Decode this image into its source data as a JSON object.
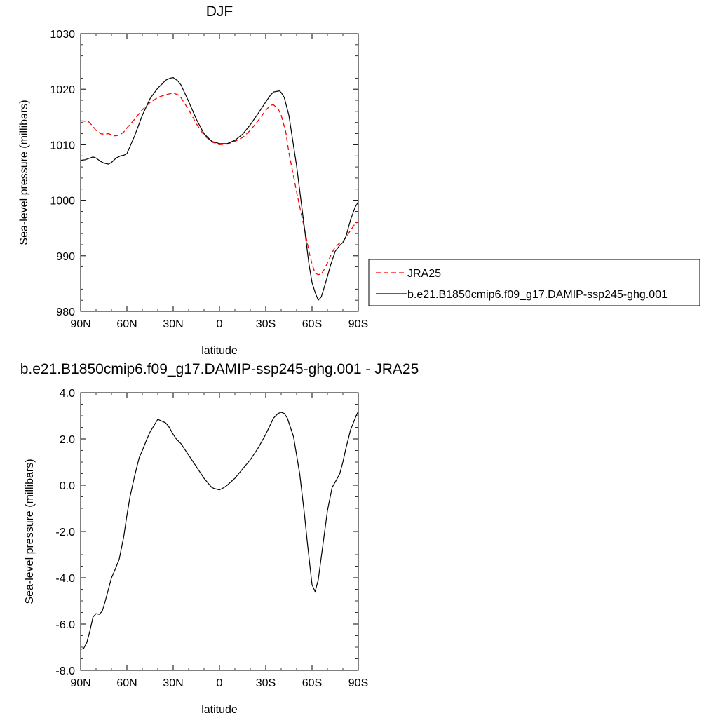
{
  "colors": {
    "model": "#000000",
    "obs": "#ff0000",
    "frame": "#000000"
  },
  "chart_data": [
    {
      "type": "line",
      "title": "DJF",
      "xlabel": "latitude",
      "ylabel": "Sea-level pressure (millibars)",
      "xlim": [
        90,
        -90
      ],
      "ylim": [
        980,
        1030
      ],
      "x_ticks": [
        90,
        60,
        30,
        0,
        -30,
        -60,
        -90
      ],
      "x_tick_labels": [
        "90N",
        "60N",
        "30N",
        "0",
        "30S",
        "60S",
        "90S"
      ],
      "y_ticks": [
        980,
        990,
        1000,
        1010,
        1020,
        1030
      ],
      "y_tick_labels": [
        "980",
        "990",
        "1000",
        "1010",
        "1020",
        "1030"
      ],
      "grid": false,
      "legend": {
        "placement": "right",
        "entries": [
          {
            "label": "JRA25",
            "series": 0
          },
          {
            "label": "b.e21.B1850cmip6.f09_g17.DAMIP-ssp245-ghg.001",
            "series": 1
          }
        ]
      },
      "series": [
        {
          "name": "JRA25",
          "style": "dashed",
          "color": "#ff0000",
          "x": [
            90,
            85,
            82,
            80,
            77,
            75,
            72,
            70,
            68,
            65,
            62,
            60,
            55,
            50,
            45,
            40,
            35,
            30,
            27,
            25,
            20,
            15,
            10,
            5,
            0,
            -5,
            -10,
            -15,
            -20,
            -25,
            -30,
            -33,
            -35,
            -38,
            -40,
            -43,
            -45,
            -50,
            -55,
            -58,
            -60,
            -62,
            -64,
            -66,
            -68,
            -70,
            -72,
            -75,
            -78,
            -80,
            -82,
            -85,
            -88,
            -90
          ],
          "y": [
            1014.3,
            1014.2,
            1013.3,
            1012.6,
            1012.0,
            1011.9,
            1012.0,
            1011.8,
            1011.6,
            1011.7,
            1012.3,
            1013.0,
            1014.6,
            1016.3,
            1017.6,
            1018.5,
            1019.0,
            1019.3,
            1019.0,
            1018.5,
            1016.3,
            1013.8,
            1011.7,
            1010.5,
            1010.0,
            1010.1,
            1010.6,
            1011.3,
            1012.6,
            1014.3,
            1016.2,
            1017.1,
            1017.2,
            1016.5,
            1015.3,
            1012.3,
            1008.6,
            1001.5,
            995.0,
            990.8,
            988.5,
            986.9,
            986.6,
            986.7,
            987.6,
            988.7,
            990.0,
            991.6,
            992.3,
            992.6,
            993.3,
            994.6,
            995.8,
            996.1
          ]
        },
        {
          "name": "b.e21.B1850cmip6.f09_g17.DAMIP-ssp245-ghg.001",
          "style": "solid",
          "color": "#000000",
          "x": [
            90,
            87,
            84,
            82,
            80,
            77,
            75,
            72,
            70,
            67,
            64,
            62,
            60,
            55,
            50,
            45,
            40,
            37,
            35,
            32,
            30,
            27,
            25,
            20,
            15,
            10,
            5,
            0,
            -5,
            -10,
            -15,
            -20,
            -25,
            -30,
            -33,
            -35,
            -37,
            -39,
            -40,
            -42,
            -45,
            -50,
            -55,
            -58,
            -60,
            -62,
            -64,
            -66,
            -68,
            -70,
            -72,
            -75,
            -78,
            -80,
            -82,
            -85,
            -88,
            -90
          ],
          "y": [
            1007.2,
            1007.3,
            1007.6,
            1007.8,
            1007.6,
            1007.0,
            1006.7,
            1006.5,
            1006.8,
            1007.6,
            1008.0,
            1008.1,
            1008.4,
            1011.6,
            1015.3,
            1018.3,
            1020.2,
            1021.0,
            1021.6,
            1022.0,
            1022.1,
            1021.5,
            1020.8,
            1017.8,
            1014.6,
            1012.0,
            1010.6,
            1010.2,
            1010.2,
            1010.8,
            1011.9,
            1013.6,
            1015.6,
            1017.7,
            1018.9,
            1019.5,
            1019.6,
            1019.7,
            1019.4,
            1018.5,
            1015.3,
            1006.2,
            995.2,
            988.5,
            985.2,
            983.4,
            982.0,
            982.6,
            984.4,
            986.3,
            988.3,
            990.8,
            991.9,
            992.4,
            993.5,
            996.5,
            998.8,
            999.7
          ]
        }
      ]
    },
    {
      "type": "line",
      "title": "b.e21.B1850cmip6.f09_g17.DAMIP-ssp245-ghg.001 - JRA25",
      "xlabel": "latitude",
      "ylabel": "Sea-level pressure (millibars)",
      "xlim": [
        90,
        -90
      ],
      "ylim": [
        -8.0,
        4.0
      ],
      "x_ticks": [
        90,
        60,
        30,
        0,
        -30,
        -60,
        -90
      ],
      "x_tick_labels": [
        "90N",
        "60N",
        "30N",
        "0",
        "30S",
        "60S",
        "90S"
      ],
      "y_ticks": [
        -8.0,
        -6.0,
        -4.0,
        -2.0,
        0.0,
        2.0,
        4.0
      ],
      "y_tick_labels": [
        "-8.0",
        "-6.0",
        "-4.0",
        "-2.0",
        "0.0",
        "2.0",
        "4.0"
      ],
      "grid": false,
      "series": [
        {
          "style": "solid",
          "color": "#000000",
          "x": [
            90,
            88,
            86,
            84,
            82,
            80,
            78,
            76,
            74,
            72,
            70,
            68,
            65,
            62,
            60,
            58,
            55,
            52,
            50,
            47,
            45,
            40,
            35,
            33,
            30,
            28,
            25,
            20,
            15,
            10,
            5,
            3,
            0,
            -3,
            -5,
            -10,
            -15,
            -20,
            -25,
            -30,
            -35,
            -38,
            -40,
            -42,
            -44,
            -46,
            -48,
            -50,
            -52,
            -55,
            -57,
            -60,
            -62,
            -64,
            -66,
            -68,
            -70,
            -73,
            -76,
            -78,
            -80,
            -82,
            -85,
            -88,
            -90
          ],
          "y": [
            -7.1,
            -7.05,
            -6.8,
            -6.3,
            -5.7,
            -5.55,
            -5.58,
            -5.45,
            -5.0,
            -4.5,
            -4.0,
            -3.7,
            -3.2,
            -2.2,
            -1.3,
            -0.5,
            0.4,
            1.2,
            1.5,
            2.0,
            2.3,
            2.85,
            2.7,
            2.55,
            2.2,
            2.0,
            1.8,
            1.3,
            0.8,
            0.3,
            -0.1,
            -0.15,
            -0.2,
            -0.1,
            0.0,
            0.3,
            0.7,
            1.1,
            1.6,
            2.2,
            2.9,
            3.1,
            3.15,
            3.1,
            2.9,
            2.5,
            2.1,
            1.3,
            0.5,
            -1.2,
            -2.5,
            -4.3,
            -4.6,
            -4.1,
            -3.1,
            -2.1,
            -1.1,
            -0.1,
            0.25,
            0.5,
            1.0,
            1.6,
            2.4,
            2.9,
            3.2
          ]
        }
      ]
    }
  ]
}
